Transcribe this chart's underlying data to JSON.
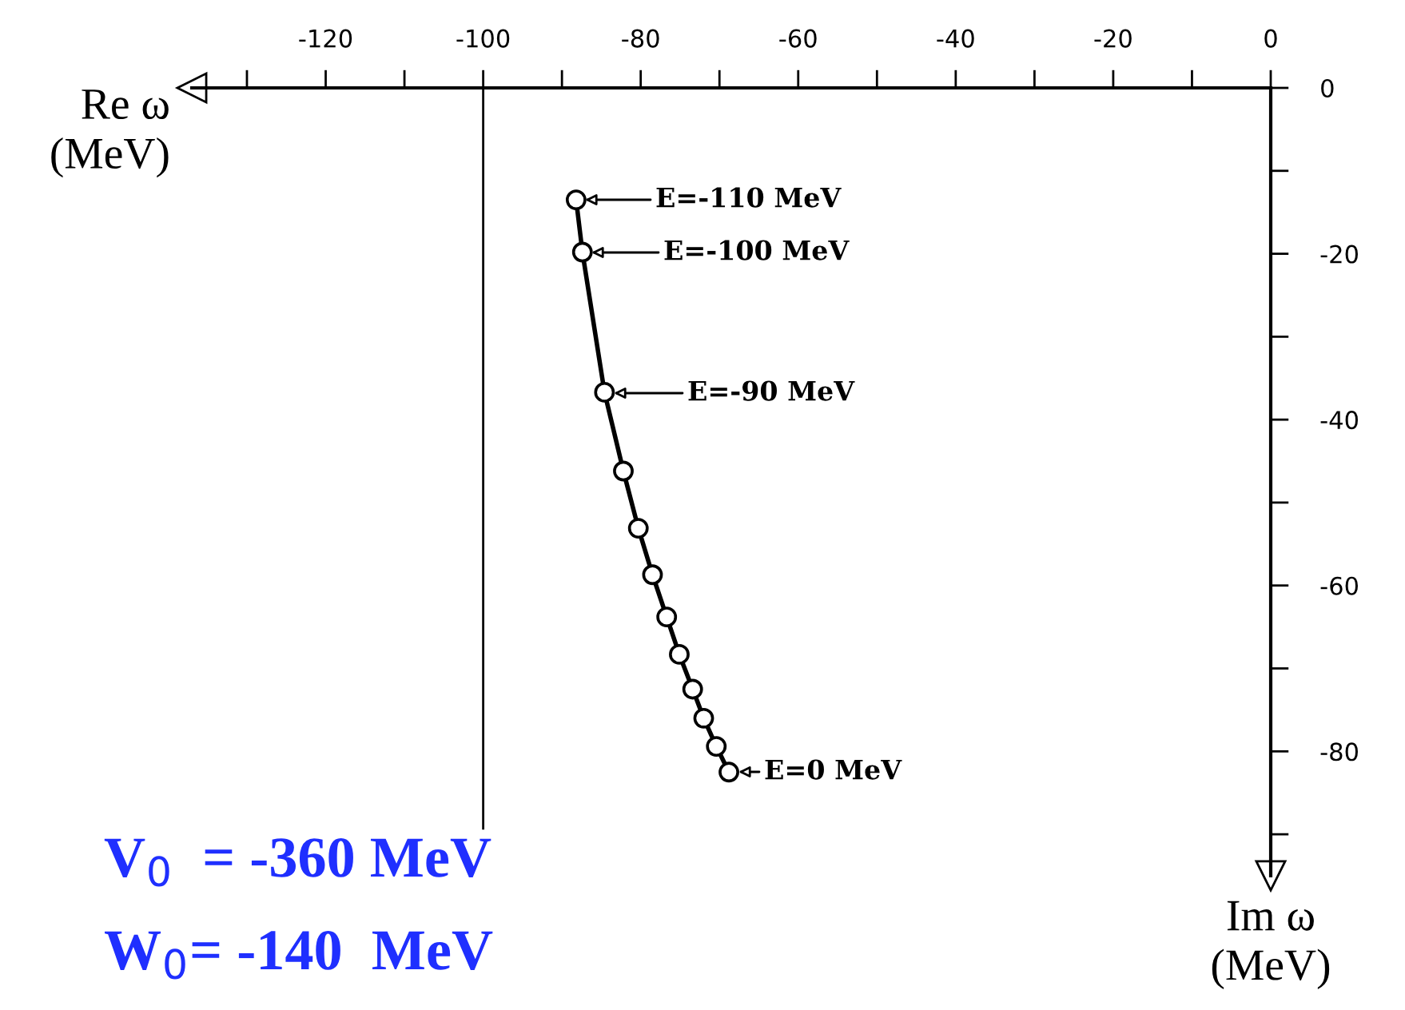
{
  "chart_data": {
    "type": "line",
    "xlabel": "Re ω\n(MeV)",
    "ylabel": "Im ω\n(MeV)",
    "xlim": [
      -137,
      0
    ],
    "ylim": [
      -95,
      0
    ],
    "xticks": [
      -120,
      {
        "value": -130,
        "label": null
      },
      {
        "value": -110,
        "label": null
      },
      -100,
      {
        "value": -90,
        "label": null
      },
      -80,
      {
        "value": -70,
        "label": null
      },
      -60,
      {
        "value": -50,
        "label": null
      },
      -40,
      {
        "value": -30,
        "label": null
      },
      -20,
      {
        "value": -10,
        "label": null
      },
      0
    ],
    "yticks": [
      0,
      {
        "value": -10,
        "label": null
      },
      -20,
      {
        "value": -30,
        "label": null
      },
      -40,
      {
        "value": -50,
        "label": null
      },
      -60,
      {
        "value": -70,
        "label": null
      },
      -80,
      {
        "value": -90,
        "label": null
      }
    ],
    "marker": "circle",
    "line_style": "solid",
    "grid": false,
    "legend": false,
    "series": [
      {
        "color": "#000000",
        "x": [
          -88.2,
          -87.4,
          -84.6,
          -82.2,
          -80.3,
          -78.5,
          -76.7,
          -75.1,
          -73.4,
          -72.0,
          -70.4,
          -68.8
        ],
        "values": [
          -13.5,
          -19.8,
          -36.7,
          -46.2,
          -53.1,
          -58.7,
          -63.8,
          -68.3,
          -72.5,
          -76.0,
          -79.4,
          -82.5
        ]
      }
    ],
    "ref_lines": [
      {
        "axis": "x",
        "value": -100,
        "label": null,
        "color": "#000000"
      }
    ],
    "annotations": [
      "E=-110 MeV",
      "E=-100 MeV",
      "E=-90 MeV",
      "E=0 MeV",
      "V$_{0}$  = -360 MeV",
      "W$_{0}$= -140  MeV"
    ]
  }
}
